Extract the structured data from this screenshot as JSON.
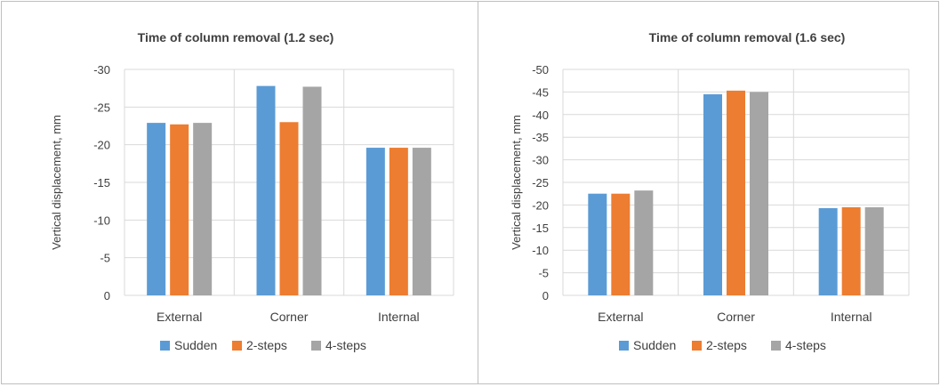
{
  "colors": {
    "Sudden": "#5b9bd5",
    "2-steps": "#ed7d31",
    "4-steps": "#a5a5a5",
    "grid": "#d9d9d9",
    "text": "#404040"
  },
  "chart_data": [
    {
      "type": "bar",
      "title": "Time of column removal (1.2 sec)",
      "ylabel": "Vertical displacement, mm",
      "xlabel": "",
      "categories": [
        "External",
        "Corner",
        "Internal"
      ],
      "series": [
        {
          "name": "Sudden",
          "values": [
            -22.9,
            -27.8,
            -19.6
          ]
        },
        {
          "name": "2-steps",
          "values": [
            -22.7,
            -23.0,
            -19.6
          ]
        },
        {
          "name": "4-steps",
          "values": [
            -22.9,
            -27.7,
            -19.6
          ]
        }
      ],
      "ylim": [
        0,
        -30
      ],
      "yticks": [
        0,
        -5,
        -10,
        -15,
        -20,
        -25,
        -30
      ],
      "ytick_labels": [
        "0",
        "-5",
        "-10",
        "-15",
        "-20",
        "-25",
        "-30"
      ],
      "grid": true,
      "legend": "bottom"
    },
    {
      "type": "bar",
      "title": "Time of column removal (1.6 sec)",
      "ylabel": "Vertical displacement, mm",
      "xlabel": "",
      "categories": [
        "External",
        "Corner",
        "Internal"
      ],
      "series": [
        {
          "name": "Sudden",
          "values": [
            -22.5,
            -44.5,
            -19.3
          ]
        },
        {
          "name": "2-steps",
          "values": [
            -22.5,
            -45.3,
            -19.5
          ]
        },
        {
          "name": "4-steps",
          "values": [
            -23.2,
            -45.0,
            -19.5
          ]
        }
      ],
      "ylim": [
        0,
        -50
      ],
      "yticks": [
        0,
        -5,
        -10,
        -15,
        -20,
        -25,
        -30,
        -35,
        -40,
        -45,
        -50
      ],
      "ytick_labels": [
        "0",
        "-5",
        "-10",
        "-15",
        "-20",
        "-25",
        "-30",
        "-35",
        "-40",
        "-45",
        "-50"
      ],
      "grid": true,
      "legend": "bottom"
    }
  ]
}
